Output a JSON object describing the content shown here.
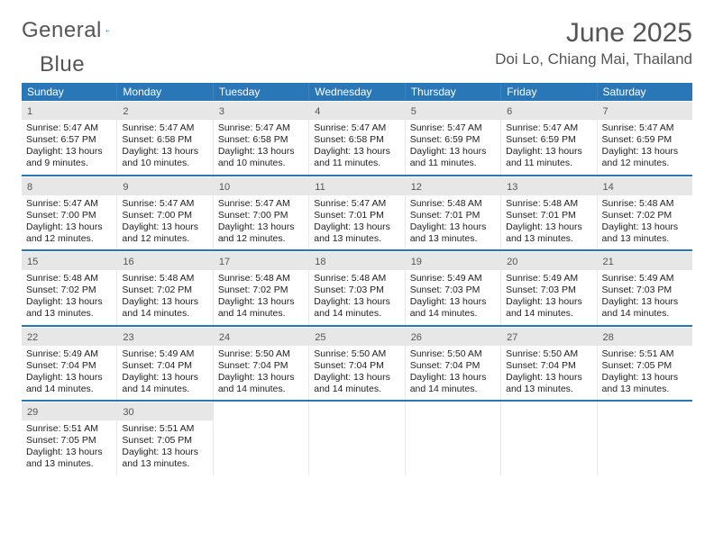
{
  "brand": {
    "word1": "General",
    "word2": "Blue"
  },
  "title": "June 2025",
  "location": "Doi Lo, Chiang Mai, Thailand",
  "colors": {
    "accent": "#2a77b8",
    "band": "#e7e7e7",
    "text": "#333333",
    "title_text": "#555555",
    "background": "#ffffff"
  },
  "typography": {
    "title_fontsize": 30,
    "location_fontsize": 17,
    "header_fontsize": 12,
    "daynum_fontsize": 11,
    "body_fontsize": 10.5
  },
  "layout": {
    "columns": 7,
    "rows": 5
  },
  "weekday_headers": [
    "Sunday",
    "Monday",
    "Tuesday",
    "Wednesday",
    "Thursday",
    "Friday",
    "Saturday"
  ],
  "weeks": [
    [
      {
        "day": 1,
        "sunrise": "5:47 AM",
        "sunset": "6:57 PM",
        "daylight": "13 hours and 9 minutes."
      },
      {
        "day": 2,
        "sunrise": "5:47 AM",
        "sunset": "6:58 PM",
        "daylight": "13 hours and 10 minutes."
      },
      {
        "day": 3,
        "sunrise": "5:47 AM",
        "sunset": "6:58 PM",
        "daylight": "13 hours and 10 minutes."
      },
      {
        "day": 4,
        "sunrise": "5:47 AM",
        "sunset": "6:58 PM",
        "daylight": "13 hours and 11 minutes."
      },
      {
        "day": 5,
        "sunrise": "5:47 AM",
        "sunset": "6:59 PM",
        "daylight": "13 hours and 11 minutes."
      },
      {
        "day": 6,
        "sunrise": "5:47 AM",
        "sunset": "6:59 PM",
        "daylight": "13 hours and 11 minutes."
      },
      {
        "day": 7,
        "sunrise": "5:47 AM",
        "sunset": "6:59 PM",
        "daylight": "13 hours and 12 minutes."
      }
    ],
    [
      {
        "day": 8,
        "sunrise": "5:47 AM",
        "sunset": "7:00 PM",
        "daylight": "13 hours and 12 minutes."
      },
      {
        "day": 9,
        "sunrise": "5:47 AM",
        "sunset": "7:00 PM",
        "daylight": "13 hours and 12 minutes."
      },
      {
        "day": 10,
        "sunrise": "5:47 AM",
        "sunset": "7:00 PM",
        "daylight": "13 hours and 12 minutes."
      },
      {
        "day": 11,
        "sunrise": "5:47 AM",
        "sunset": "7:01 PM",
        "daylight": "13 hours and 13 minutes."
      },
      {
        "day": 12,
        "sunrise": "5:48 AM",
        "sunset": "7:01 PM",
        "daylight": "13 hours and 13 minutes."
      },
      {
        "day": 13,
        "sunrise": "5:48 AM",
        "sunset": "7:01 PM",
        "daylight": "13 hours and 13 minutes."
      },
      {
        "day": 14,
        "sunrise": "5:48 AM",
        "sunset": "7:02 PM",
        "daylight": "13 hours and 13 minutes."
      }
    ],
    [
      {
        "day": 15,
        "sunrise": "5:48 AM",
        "sunset": "7:02 PM",
        "daylight": "13 hours and 13 minutes."
      },
      {
        "day": 16,
        "sunrise": "5:48 AM",
        "sunset": "7:02 PM",
        "daylight": "13 hours and 14 minutes."
      },
      {
        "day": 17,
        "sunrise": "5:48 AM",
        "sunset": "7:02 PM",
        "daylight": "13 hours and 14 minutes."
      },
      {
        "day": 18,
        "sunrise": "5:48 AM",
        "sunset": "7:03 PM",
        "daylight": "13 hours and 14 minutes."
      },
      {
        "day": 19,
        "sunrise": "5:49 AM",
        "sunset": "7:03 PM",
        "daylight": "13 hours and 14 minutes."
      },
      {
        "day": 20,
        "sunrise": "5:49 AM",
        "sunset": "7:03 PM",
        "daylight": "13 hours and 14 minutes."
      },
      {
        "day": 21,
        "sunrise": "5:49 AM",
        "sunset": "7:03 PM",
        "daylight": "13 hours and 14 minutes."
      }
    ],
    [
      {
        "day": 22,
        "sunrise": "5:49 AM",
        "sunset": "7:04 PM",
        "daylight": "13 hours and 14 minutes."
      },
      {
        "day": 23,
        "sunrise": "5:49 AM",
        "sunset": "7:04 PM",
        "daylight": "13 hours and 14 minutes."
      },
      {
        "day": 24,
        "sunrise": "5:50 AM",
        "sunset": "7:04 PM",
        "daylight": "13 hours and 14 minutes."
      },
      {
        "day": 25,
        "sunrise": "5:50 AM",
        "sunset": "7:04 PM",
        "daylight": "13 hours and 14 minutes."
      },
      {
        "day": 26,
        "sunrise": "5:50 AM",
        "sunset": "7:04 PM",
        "daylight": "13 hours and 14 minutes."
      },
      {
        "day": 27,
        "sunrise": "5:50 AM",
        "sunset": "7:04 PM",
        "daylight": "13 hours and 13 minutes."
      },
      {
        "day": 28,
        "sunrise": "5:51 AM",
        "sunset": "7:05 PM",
        "daylight": "13 hours and 13 minutes."
      }
    ],
    [
      {
        "day": 29,
        "sunrise": "5:51 AM",
        "sunset": "7:05 PM",
        "daylight": "13 hours and 13 minutes."
      },
      {
        "day": 30,
        "sunrise": "5:51 AM",
        "sunset": "7:05 PM",
        "daylight": "13 hours and 13 minutes."
      },
      null,
      null,
      null,
      null,
      null
    ]
  ],
  "labels": {
    "sunrise": "Sunrise:",
    "sunset": "Sunset:",
    "daylight": "Daylight:"
  }
}
